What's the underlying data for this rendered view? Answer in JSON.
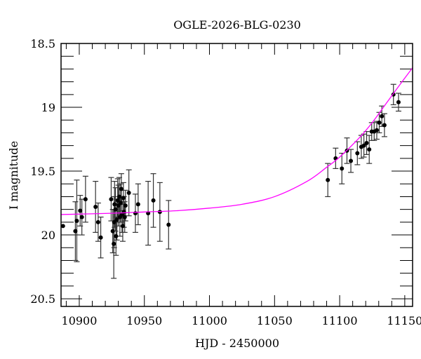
{
  "chart_data": {
    "type": "scatter",
    "title": "OGLE-2026-BLG-0230",
    "xlabel": "HJD - 2450000",
    "ylabel": "I magnitude",
    "xlim": [
      10886,
      11156
    ],
    "ylim": [
      20.56,
      18.5
    ],
    "y_inverted": true,
    "grid": false,
    "x_ticks": [
      10900,
      10950,
      11000,
      11050,
      11100,
      11150
    ],
    "x_tick_labels": [
      "10900",
      "10950",
      "11000",
      "11050",
      "11100",
      "11150"
    ],
    "y_ticks": [
      18.5,
      19,
      19.5,
      20,
      20.5
    ],
    "y_tick_labels": [
      "18.5",
      "19",
      "19.5",
      "20",
      "20.5"
    ],
    "colors": {
      "points": "#000000",
      "errorbars": "#333333",
      "model": "#ff00ff"
    },
    "series": [
      {
        "type": "scatter-errorbar",
        "points": [
          [
            10887.5,
            19.93,
            0.0
          ],
          [
            10897.0,
            19.97,
            0.23
          ],
          [
            10898.1,
            19.89,
            0.32
          ],
          [
            10900.7,
            19.81,
            0.12
          ],
          [
            10902.0,
            19.86,
            0.14
          ],
          [
            10904.8,
            19.72,
            0.18
          ],
          [
            10912.5,
            19.78,
            0.2
          ],
          [
            10914.5,
            19.9,
            0.15
          ],
          [
            10916.5,
            20.02,
            0.16
          ],
          [
            10924.5,
            19.72,
            0.17
          ],
          [
            10925.7,
            19.97,
            0.17
          ],
          [
            10926.5,
            20.07,
            0.27
          ],
          [
            10926.8,
            19.9,
            0.2
          ],
          [
            10927.1,
            19.76,
            0.18
          ],
          [
            10927.8,
            19.8,
            0.17
          ],
          [
            10928.2,
            20.01,
            0.15
          ],
          [
            10928.9,
            19.88,
            0.16
          ],
          [
            10929.5,
            19.73,
            0.17
          ],
          [
            10930.0,
            19.77,
            0.16
          ],
          [
            10930.7,
            19.7,
            0.15
          ],
          [
            10931.2,
            19.86,
            0.15
          ],
          [
            10931.8,
            19.75,
            0.15
          ],
          [
            10932.3,
            19.64,
            0.12
          ],
          [
            10932.8,
            19.84,
            0.14
          ],
          [
            10933.4,
            19.93,
            0.12
          ],
          [
            10933.9,
            19.71,
            0.12
          ],
          [
            10934.3,
            19.82,
            0.12
          ],
          [
            10934.9,
            19.86,
            0.12
          ],
          [
            10935.5,
            19.77,
            0.12
          ],
          [
            10938.1,
            19.67,
            0.18
          ],
          [
            10943.1,
            19.83,
            0.15
          ],
          [
            10945.2,
            19.76,
            0.16
          ],
          [
            10952.9,
            19.83,
            0.25
          ],
          [
            10956.9,
            19.73,
            0.21
          ],
          [
            10961.9,
            19.82,
            0.23
          ],
          [
            10968.6,
            19.92,
            0.19
          ],
          [
            11090.9,
            19.57,
            0.13
          ],
          [
            11096.9,
            19.4,
            0.08
          ],
          [
            11101.7,
            19.48,
            0.12
          ],
          [
            11105.6,
            19.34,
            0.1
          ],
          [
            11108.6,
            19.42,
            0.09
          ],
          [
            11113.6,
            19.36,
            0.09
          ],
          [
            11116.6,
            19.31,
            0.09
          ],
          [
            11118.6,
            19.3,
            0.09
          ],
          [
            11120.7,
            19.28,
            0.09
          ],
          [
            11122.7,
            19.33,
            0.11
          ],
          [
            11124.6,
            19.19,
            0.07
          ],
          [
            11126.5,
            19.19,
            0.07
          ],
          [
            11128.5,
            19.18,
            0.07
          ],
          [
            11130.4,
            19.12,
            0.08
          ],
          [
            11132.4,
            19.07,
            0.08
          ],
          [
            11134.4,
            19.14,
            0.09
          ],
          [
            11141.3,
            18.9,
            0.08
          ],
          [
            11145.2,
            18.96,
            0.07
          ]
        ]
      },
      {
        "type": "line",
        "points": [
          [
            10886,
            19.84
          ],
          [
            10925,
            19.83
          ],
          [
            10950,
            19.82
          ],
          [
            10975,
            19.81
          ],
          [
            11000,
            19.79
          ],
          [
            11025,
            19.76
          ],
          [
            11050,
            19.7
          ],
          [
            11075,
            19.58
          ],
          [
            11090,
            19.47
          ],
          [
            11100,
            19.39
          ],
          [
            11115,
            19.24
          ],
          [
            11125,
            19.12
          ],
          [
            11135,
            18.98
          ],
          [
            11145,
            18.84
          ],
          [
            11156,
            18.69
          ]
        ]
      }
    ]
  }
}
